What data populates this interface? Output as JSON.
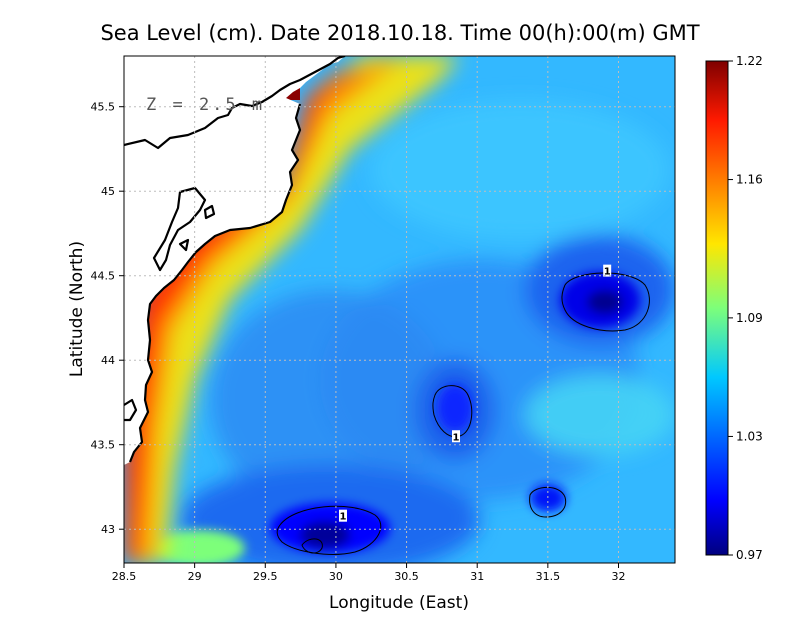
{
  "title": "Sea Level (cm). Date 2018.10.18. Time 00(h):00(m) GMT",
  "depth_label": "Z = 2.5 m",
  "chart_data": {
    "type": "heatmap",
    "title": "Sea Level (cm). Date 2018.10.18. Time 00(h):00(m) GMT",
    "xlabel": "Longitude (East)",
    "ylabel": "Latitude (North)",
    "xlim": [
      28.5,
      32.4
    ],
    "ylim": [
      42.8,
      45.8
    ],
    "x_ticks": [
      "28.5",
      "29",
      "29.5",
      "30",
      "30.5",
      "31",
      "31.5",
      "32"
    ],
    "y_ticks": [
      "43",
      "43.5",
      "44",
      "44.5",
      "45",
      "45.5"
    ],
    "x_tick_values": [
      28.5,
      29,
      29.5,
      30,
      30.5,
      31,
      31.5,
      32
    ],
    "y_tick_values": [
      43,
      43.5,
      44,
      44.5,
      45,
      45.5
    ],
    "colorbar": {
      "ticks": [
        "1.22",
        "1.16",
        "1.09",
        "1.03",
        "0.97"
      ],
      "tick_values": [
        1.22,
        1.16,
        1.09,
        1.03,
        0.97
      ],
      "min": 0.97,
      "max": 1.22,
      "colormap": "jet"
    },
    "grid": true,
    "contour_level": 1,
    "contour_labels": [
      {
        "text": "1",
        "lon": 31.92,
        "lat": 44.53
      },
      {
        "text": "1",
        "lon": 30.85,
        "lat": 43.55
      },
      {
        "text": "1",
        "lon": 30.05,
        "lat": 43.08
      }
    ]
  },
  "colors": {
    "land": "#ffffff",
    "coastline": "#000000",
    "grid": "#bdbdbd"
  }
}
